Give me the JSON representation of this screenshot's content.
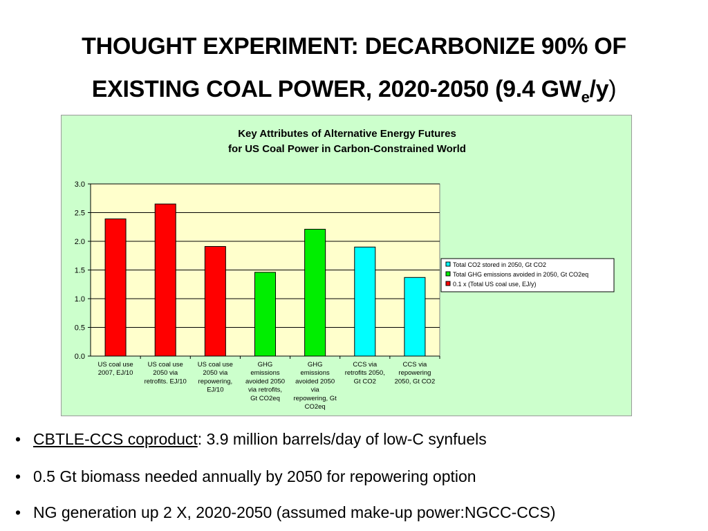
{
  "title": {
    "line1": "THOUGHT EXPERIMENT: DECARBONIZE 90% OF",
    "line2_main": "EXISTING COAL POWER, 2020-2050 (9.4 GW",
    "line2_sub": "e",
    "line2_end": "/y",
    "line2_close": ")"
  },
  "chart_data": {
    "type": "bar",
    "title_line1": "Key Attributes of Alternative Energy Futures",
    "title_line2": "for US Coal Power in Carbon-Constrained World",
    "ylim": [
      0,
      3.0
    ],
    "yticks": [
      "0.0",
      "0.5",
      "1.0",
      "1.5",
      "2.0",
      "2.5",
      "3.0"
    ],
    "ytick_values": [
      0,
      0.5,
      1.0,
      1.5,
      2.0,
      2.5,
      3.0
    ],
    "grid": true,
    "legend_position": "right",
    "colors": {
      "chart_bg": "#ccffcc",
      "plot_bg": "#ffffcc",
      "red": "#ff0000",
      "green": "#00ee00",
      "cyan": "#00ffff"
    },
    "categories": [
      [
        "US coal use",
        "2007, EJ/10"
      ],
      [
        "US coal use",
        "2050 via",
        "retrofits. EJ/10"
      ],
      [
        "US coal use",
        "2050 via",
        "repowering,",
        "EJ/10"
      ],
      [
        "GHG",
        "emissions",
        "avoided 2050",
        "via retrofits,",
        "Gt CO2eq"
      ],
      [
        "GHG",
        "emissions",
        "avoided 2050",
        "via",
        "repowering, Gt",
        "CO2eq"
      ],
      [
        "CCS via",
        "retrofits 2050,",
        "Gt CO2"
      ],
      [
        "CCS via",
        "repowering",
        "2050, Gt CO2"
      ]
    ],
    "values": [
      2.39,
      2.65,
      1.91,
      1.46,
      2.21,
      1.9,
      1.37
    ],
    "bar_series": [
      2,
      2,
      2,
      1,
      1,
      0,
      0
    ],
    "series": [
      {
        "name": "Total CO2 stored in 2050, Gt CO2",
        "color": "#00ffff"
      },
      {
        "name": "Total GHG emissions avoided in 2050, Gt CO2eq",
        "color": "#00ee00"
      },
      {
        "name": "0.1 x (Total US coal use, EJ/y)",
        "color": "#ff0000"
      }
    ]
  },
  "bullets": [
    {
      "underlined": "CBTLE-CCS coproduct",
      "text": ": 3.9 million barrels/day of low-C synfuels"
    },
    {
      "underlined": "",
      "text": "0.5 Gt biomass needed annually by 2050 for repowering option"
    },
    {
      "underlined": "",
      "text": "NG generation up 2 X, 2020-2050 (assumed make-up power:NGCC-CCS)"
    }
  ],
  "bullet_char": "•"
}
